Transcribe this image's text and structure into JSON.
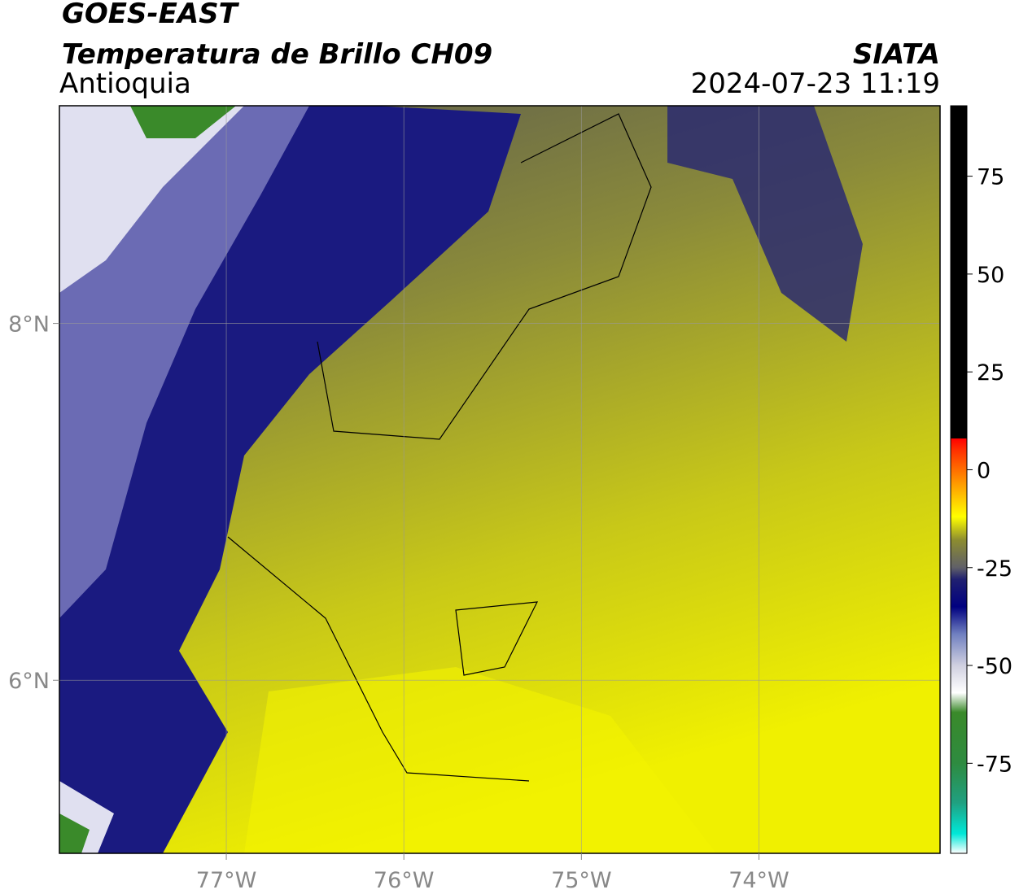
{
  "header": {
    "source": "GOES-EAST",
    "product": "Temperatura de Brillo CH09",
    "region": "Antioquia",
    "agency": "SIATA",
    "datetime": "2024-07-23 11:19"
  },
  "map": {
    "xlim": [
      -77.94,
      -72.98
    ],
    "ylim": [
      5.03,
      9.22
    ],
    "xticks": [
      {
        "value": -77,
        "label": "77°W"
      },
      {
        "value": -76,
        "label": "76°W"
      },
      {
        "value": -75,
        "label": "75°W"
      },
      {
        "value": -74,
        "label": "74°W"
      }
    ],
    "yticks": [
      {
        "value": 8,
        "label": "8°N"
      },
      {
        "value": 6,
        "label": "6°N"
      }
    ],
    "grid": true
  },
  "colorbar": {
    "lim": [
      -98,
      93
    ],
    "ticks": [
      75,
      50,
      25,
      0,
      -25,
      -50,
      -75
    ],
    "stops": [
      {
        "value": -98,
        "color": "#ffffff"
      },
      {
        "value": -93,
        "color": "#00e8d8"
      },
      {
        "value": -85,
        "color": "#20a080"
      },
      {
        "value": -75,
        "color": "#2e8b40"
      },
      {
        "value": -62,
        "color": "#3a8a2a"
      },
      {
        "value": -57,
        "color": "#ffffff"
      },
      {
        "value": -50,
        "color": "#d0d0e0"
      },
      {
        "value": -42,
        "color": "#7080c0"
      },
      {
        "value": -35,
        "color": "#000080"
      },
      {
        "value": -28,
        "color": "#202070"
      },
      {
        "value": -25,
        "color": "#606068"
      },
      {
        "value": -18,
        "color": "#8c8c30"
      },
      {
        "value": -12,
        "color": "#ffff00"
      },
      {
        "value": -4,
        "color": "#ffa000"
      },
      {
        "value": 5,
        "color": "#ff3000"
      },
      {
        "value": 8,
        "color": "#ff0000"
      },
      {
        "value": 8,
        "color": "#000000"
      },
      {
        "value": 93,
        "color": "#000000"
      }
    ]
  }
}
